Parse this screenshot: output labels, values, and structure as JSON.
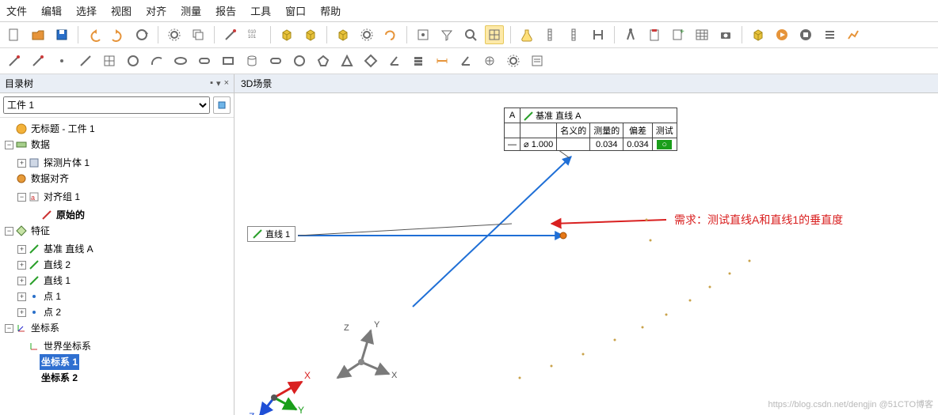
{
  "menu": {
    "items": [
      "文件",
      "编辑",
      "选择",
      "视图",
      "对齐",
      "测量",
      "报告",
      "工具",
      "窗口",
      "帮助"
    ]
  },
  "toolbar_icons_row1": [
    "new",
    "open",
    "save",
    "sep",
    "undo",
    "redo",
    "refresh",
    "sep",
    "settings",
    "duplicate",
    "sep",
    "probe",
    "matrix",
    "sep",
    "cube-pkg",
    "cube-add",
    "sep",
    "cube-y",
    "gear",
    "swirl",
    "sep",
    "snap",
    "filter",
    "zoom-all",
    "grid",
    "sep",
    "flask",
    "ruler-v",
    "ruler-d",
    "caliper",
    "sep",
    "compass",
    "clipboard",
    "note-add",
    "table",
    "camera",
    "sep",
    "box3d",
    "play",
    "stop",
    "list",
    "chart"
  ],
  "toolbar_icons_row2": [
    "probe1",
    "probe2",
    "dot",
    "line",
    "grid2",
    "circle",
    "arc",
    "ellipse",
    "slot",
    "rect",
    "cylinder",
    "pill",
    "sphere",
    "poly",
    "pyramid",
    "diamond",
    "angle2",
    "stack",
    "width",
    "angle",
    "plus-dot",
    "gear2",
    "form"
  ],
  "left": {
    "title": "目录树",
    "select": "工件 1",
    "tree": {
      "root": "无标题 - 工件 1",
      "data": "数据",
      "probe": "探测片体 1",
      "align_root": "数据对齐",
      "align_group": "对齐组 1",
      "align_orig": "原始的",
      "features": "特征",
      "datum_a": "基准 直线 A",
      "line2": "直线 2",
      "line1": "直线 1",
      "pt1": "点 1",
      "pt2": "点 2",
      "cs_root": "坐标系",
      "cs_world": "世界坐标系",
      "cs1": "坐标系 1",
      "cs2": "坐标系 2"
    }
  },
  "scene": {
    "title": "3D场景",
    "line1_tag": "直线 1",
    "datum_box": {
      "datum_letter": "A",
      "datum_label": "基准 直线 A",
      "h1": "名义的",
      "h2": "测量的",
      "h3": "偏差",
      "h4": "测试",
      "sym": "⌀",
      "nominal": "1.000",
      "meas": "",
      "dev": "0.034",
      "test": "0.034",
      "pass": "○"
    },
    "requirement": "需求：测试直线A和直线1的垂直度",
    "axes": {
      "x": "X",
      "y": "Y",
      "z": "Z"
    }
  },
  "watermark": "https://blog.csdn.net/dengjin @51CTO博客",
  "colors": {
    "blue": "#1f6fd6",
    "red": "#d92020",
    "green": "#1a9e1a",
    "orange": "#e67817",
    "axis_gray": "#7a7a7a",
    "dot": "#c9a24a"
  }
}
